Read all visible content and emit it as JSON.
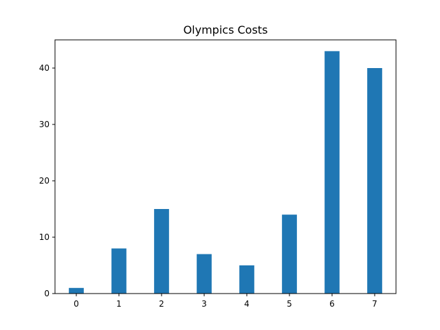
{
  "chart_data": {
    "type": "bar",
    "title": "Olympics Costs",
    "xlabel": "",
    "ylabel": "",
    "categories": [
      "0",
      "1",
      "2",
      "3",
      "4",
      "5",
      "6",
      "7"
    ],
    "values": [
      1,
      8,
      15,
      7,
      5,
      14,
      43,
      40
    ],
    "xlim": [
      -0.5,
      7.5
    ],
    "ylim": [
      0,
      45
    ],
    "yticks": [
      0,
      10,
      20,
      30,
      40
    ],
    "bar_color": "#1f77b4",
    "grid": false,
    "legend": "none"
  }
}
